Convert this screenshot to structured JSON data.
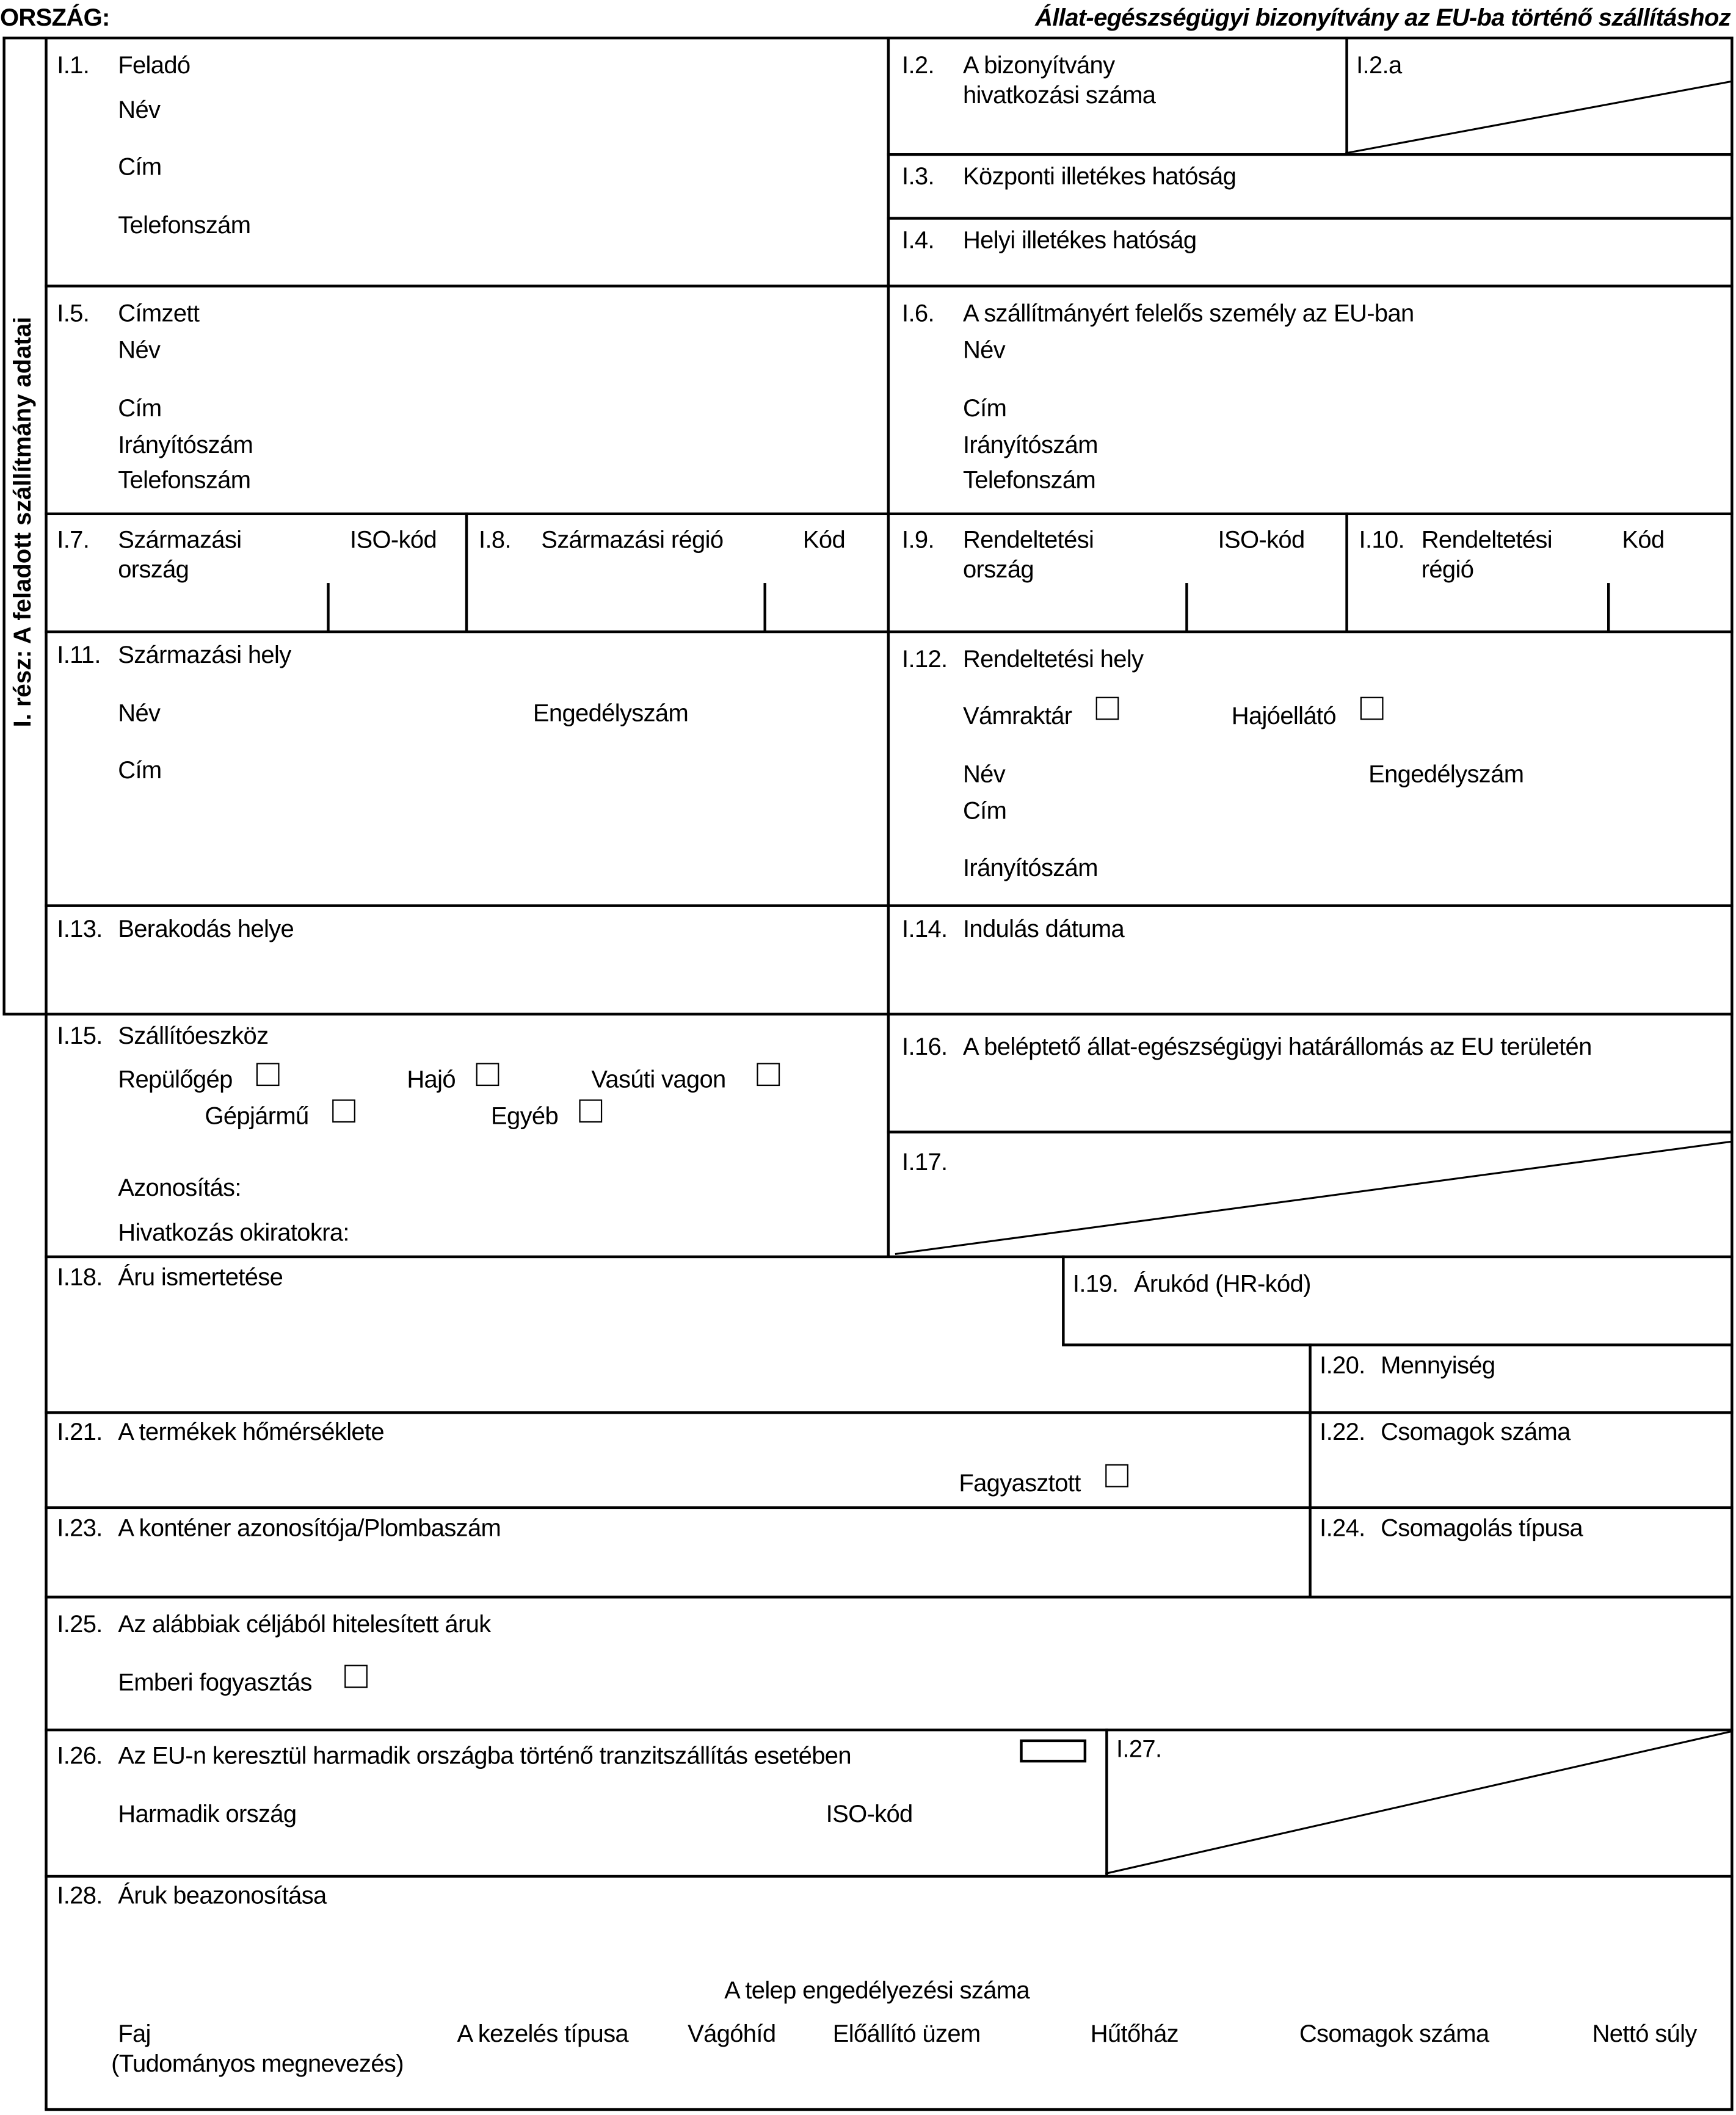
{
  "header": {
    "country_label": "ORSZÁG:",
    "title": "Állat-egészségügyi bizonyítvány az EU-ba történő szállításhoz"
  },
  "sidebar": {
    "label": "I. rész: A feladott szállítmány adatai"
  },
  "f1": {
    "num": "I.1.",
    "title": "Feladó",
    "name": "Név",
    "address": "Cím",
    "phone": "Telefonszám"
  },
  "f2": {
    "num": "I.2.",
    "title1": "A bizonyítvány",
    "title2": "hivatkozási száma"
  },
  "f2a": {
    "num": "I.2.a"
  },
  "f3": {
    "num": "I.3.",
    "title": "Központi illetékes hatóság"
  },
  "f4": {
    "num": "I.4.",
    "title": "Helyi illetékes hatóság"
  },
  "f5": {
    "num": "I.5.",
    "title": "Címzett",
    "name": "Név",
    "address": "Cím",
    "postcode": "Irányítószám",
    "phone": "Telefonszám"
  },
  "f6": {
    "num": "I.6.",
    "title": "A szállítmányért felelős személy az EU-ban",
    "name": "Név",
    "address": "Cím",
    "postcode": "Irányítószám",
    "phone": "Telefonszám"
  },
  "f7": {
    "num": "I.7.",
    "title1": "Származási",
    "title2": "ország",
    "code": "ISO-kód"
  },
  "f8": {
    "num": "I.8.",
    "title": "Származási régió",
    "code": "Kód"
  },
  "f9": {
    "num": "I.9.",
    "title1": "Rendeltetési",
    "title2": "ország",
    "code": "ISO-kód"
  },
  "f10": {
    "num": "I.10.",
    "title1": "Rendeltetési",
    "title2": "régió",
    "code": "Kód"
  },
  "f11": {
    "num": "I.11.",
    "title": "Származási hely",
    "name": "Név",
    "approval": "Engedélyszám",
    "address": "Cím"
  },
  "f12": {
    "num": "I.12.",
    "title": "Rendeltetési hely",
    "customs": "Vámraktár",
    "ship_supplier": "Hajóellátó",
    "name": "Név",
    "approval": "Engedélyszám",
    "address": "Cím",
    "postcode": "Irányítószám"
  },
  "f13": {
    "num": "I.13.",
    "title": "Berakodás helye"
  },
  "f14": {
    "num": "I.14.",
    "title": "Indulás dátuma"
  },
  "f15": {
    "num": "I.15.",
    "title": "Szállítóeszköz",
    "aircraft": "Repülőgép",
    "ship": "Hajó",
    "rail": "Vasúti vagon",
    "road": "Gépjármű",
    "other": "Egyéb",
    "identification": "Azonosítás:",
    "documents": "Hivatkozás okiratokra:"
  },
  "f16": {
    "num": "I.16.",
    "title": "A beléptető állat-egészségügyi határállomás az EU területén"
  },
  "f17": {
    "num": "I.17."
  },
  "f18": {
    "num": "I.18.",
    "title": "Áru ismertetése"
  },
  "f19": {
    "num": "I.19.",
    "title": "Árukód (HR-kód)"
  },
  "f20": {
    "num": "I.20.",
    "title": "Mennyiség"
  },
  "f21": {
    "num": "I.21.",
    "title": "A termékek hőmérséklete",
    "frozen": "Fagyasztott"
  },
  "f22": {
    "num": "I.22.",
    "title": "Csomagok száma"
  },
  "f23": {
    "num": "I.23.",
    "title": "A konténer azonosítója/Plombaszám"
  },
  "f24": {
    "num": "I.24.",
    "title": "Csomagolás típusa"
  },
  "f25": {
    "num": "I.25.",
    "title": "Az alábbiak céljából hitelesített áruk",
    "human": "Emberi fogyasztás"
  },
  "f26": {
    "num": "I.26.",
    "title": "Az EU-n keresztül harmadik országba történő tranzitszállítás esetében",
    "third_country": "Harmadik ország",
    "code": "ISO-kód"
  },
  "f27": {
    "num": "I.27."
  },
  "f28": {
    "num": "I.28.",
    "title": "Áruk beazonosítása",
    "approval_header": "A telep engedélyezési száma",
    "columns": [
      "Faj",
      "(Tudományos megnevezés)",
      "A kezelés típusa",
      "Vágóhíd",
      "Előállító üzem",
      "Hűtőház",
      "Csomagok száma",
      "Nettó súly"
    ]
  }
}
